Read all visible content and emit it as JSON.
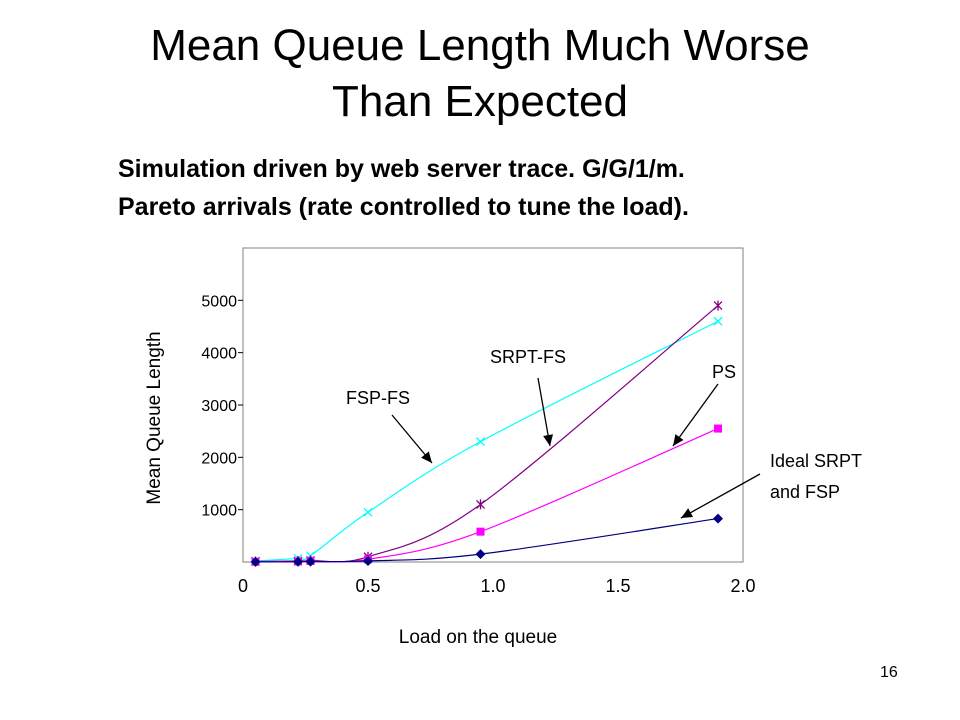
{
  "slide": {
    "title_line1": "Mean Queue Length Much Worse",
    "title_line2": "Than Expected",
    "subtitle_line1": "Simulation driven by web server trace. G/G/1/m.",
    "subtitle_line2": "Pareto arrivals (rate controlled to tune the load).",
    "page_number": "16"
  },
  "chart_data": {
    "type": "line",
    "title": "",
    "xlabel": "Load on the queue",
    "ylabel": "Mean Queue Length",
    "xlim": [
      0,
      2.0
    ],
    "ylim": [
      0,
      6000
    ],
    "x_ticks": [
      0,
      0.5,
      1.0,
      1.5,
      2.0
    ],
    "x_tick_labels": [
      "0",
      "0.5",
      "1.0",
      "1.5",
      "2.0"
    ],
    "y_ticks": [
      1000,
      2000,
      3000,
      4000,
      5000
    ],
    "y_tick_labels": [
      "1000",
      "2000",
      "3000",
      "4000",
      "5000"
    ],
    "grid": false,
    "x": [
      0.05,
      0.22,
      0.27,
      0.5,
      0.95,
      1.9
    ],
    "series": [
      {
        "name": "FSP-FS",
        "color": "#00ffff",
        "marker": "x",
        "values": [
          20,
          70,
          120,
          950,
          2300,
          4600
        ]
      },
      {
        "name": "SRPT-FS",
        "color": "#800080",
        "marker": "star",
        "values": [
          10,
          20,
          30,
          100,
          1100,
          4900
        ]
      },
      {
        "name": "PS",
        "color": "#ff00ff",
        "marker": "square",
        "values": [
          5,
          10,
          20,
          50,
          580,
          2550
        ]
      },
      {
        "name": "Ideal SRPT and FSP",
        "color": "#000080",
        "marker": "diamond",
        "values": [
          3,
          5,
          8,
          20,
          150,
          830
        ]
      }
    ],
    "fsp_fs_label": "FSP-FS",
    "srpt_fs_label": "SRPT-FS",
    "ps_label": "PS",
    "ideal_line1": "Ideal SRPT",
    "ideal_line2": "and FSP"
  }
}
